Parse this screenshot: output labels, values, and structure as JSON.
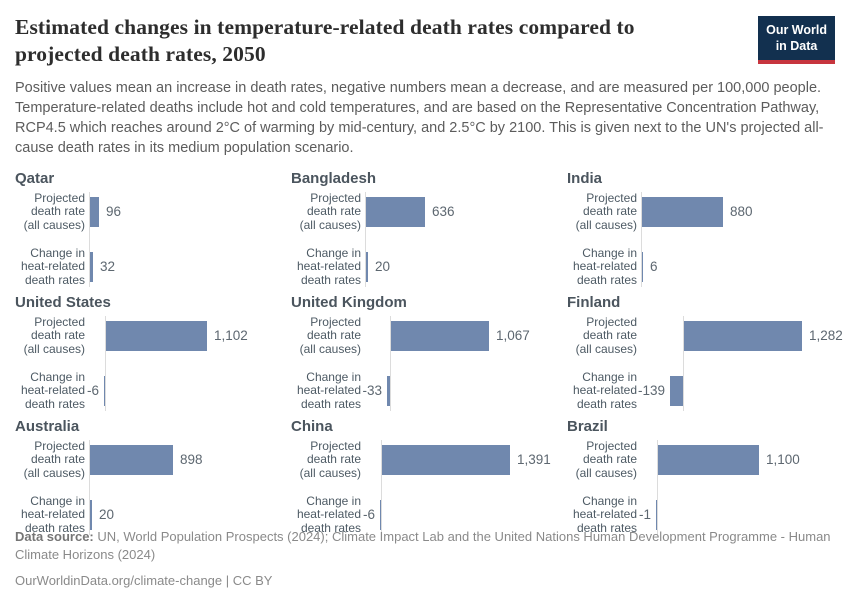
{
  "header": {
    "title": "Estimated changes in temperature-related death rates compared to projected death rates, 2050",
    "subtitle": "Positive values mean an increase in death rates, negative numbers mean a decrease, and are measured per 100,000 people. Temperature-related deaths include hot and cold temperatures, and are based on the Representative Concentration Pathway, RCP4.5 which reaches around 2°C of warming by mid-century, and 2.5°C by 2100. This is given next to the UN's projected all-cause death rates in its medium population scenario.",
    "logo": {
      "line1": "Our World",
      "line2": "in Data"
    }
  },
  "chart_data": {
    "type": "bar",
    "orientation": "horizontal",
    "layout": "3x3 small multiples, shared value scale, value labels at bar ends, no x-axis ticks",
    "unit": "deaths per 100,000 people",
    "categories": [
      "Projected death rate (all causes)",
      "Change in heat-related death rates"
    ],
    "panels": [
      {
        "country": "Qatar",
        "values": [
          96,
          32
        ],
        "displays": [
          "96",
          "32"
        ]
      },
      {
        "country": "Bangladesh",
        "values": [
          636,
          20
        ],
        "displays": [
          "636",
          "20"
        ]
      },
      {
        "country": "India",
        "values": [
          880,
          6
        ],
        "displays": [
          "880",
          "6"
        ]
      },
      {
        "country": "United States",
        "values": [
          1102,
          -6
        ],
        "displays": [
          "1,102",
          "-6"
        ]
      },
      {
        "country": "United Kingdom",
        "values": [
          1067,
          -33
        ],
        "displays": [
          "1,067",
          "-33"
        ]
      },
      {
        "country": "Finland",
        "values": [
          1282,
          -139
        ],
        "displays": [
          "1,282",
          "-139"
        ]
      },
      {
        "country": "Australia",
        "values": [
          898,
          20
        ],
        "displays": [
          "898",
          "20"
        ]
      },
      {
        "country": "China",
        "values": [
          1391,
          -6
        ],
        "displays": [
          "1,391",
          "-6"
        ]
      },
      {
        "country": "Brazil",
        "values": [
          1100,
          -1
        ],
        "displays": [
          "1,100",
          "-1"
        ]
      }
    ]
  },
  "style": {
    "bar_color": "#7088ae",
    "axis_color": "#dcdcdc",
    "logo_bg": "#12304f",
    "logo_accent": "#c7353e",
    "title_color": "#2d2d2d"
  },
  "footer": {
    "source_label": "Data source:",
    "source_text": "UN, World Population Prospects (2024); Climate Impact Lab and the United Nations Human Development Programme - Human Climate Horizons (2024)",
    "citation": "OurWorldinData.org/climate-change | CC BY"
  }
}
